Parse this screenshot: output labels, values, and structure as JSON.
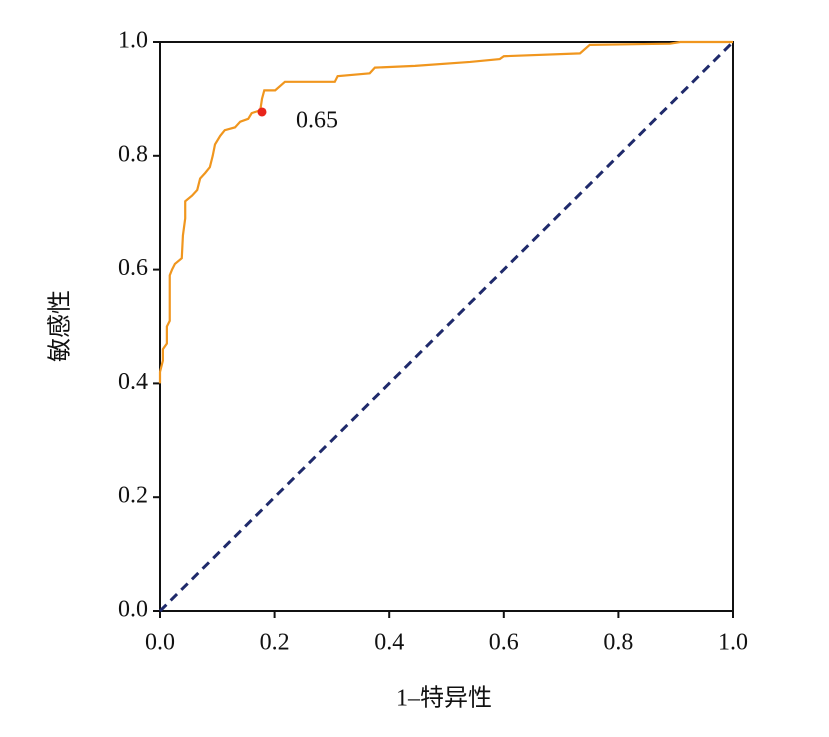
{
  "chart_data": {
    "type": "line",
    "xlabel": "1–特异性",
    "ylabel": "敏感性",
    "xlim": [
      0,
      1
    ],
    "ylim": [
      0,
      1
    ],
    "xticks": [
      {
        "value": 0,
        "label": "0.0"
      },
      0.2,
      0.4,
      0.6,
      0.8,
      {
        "value": 1,
        "label": "1.0"
      }
    ],
    "yticks": [
      {
        "value": 0,
        "label": "0.0"
      },
      0.2,
      0.4,
      0.6,
      0.8,
      {
        "value": 1,
        "label": "1.0"
      }
    ],
    "series": [
      {
        "color": "#f0961e",
        "dash": false,
        "x": [
          0,
          0,
          0.005,
          0.005,
          0.012,
          0.012,
          0.017,
          0.017,
          0.021,
          0.026,
          0.038,
          0.04,
          0.044,
          0.044,
          0.056,
          0.065,
          0.07,
          0.079,
          0.087,
          0.092,
          0.096,
          0.105,
          0.113,
          0.131,
          0.14,
          0.154,
          0.16,
          0.175,
          0.178,
          0.182,
          0.201,
          0.218,
          0.305,
          0.31,
          0.366,
          0.375,
          0.445,
          0.541,
          0.593,
          0.6,
          0.733,
          0.75,
          0.89,
          0.908,
          1
        ],
        "values": [
          0.4,
          0.42,
          0.44,
          0.46,
          0.47,
          0.5,
          0.51,
          0.59,
          0.6,
          0.61,
          0.62,
          0.66,
          0.69,
          0.72,
          0.73,
          0.74,
          0.76,
          0.77,
          0.78,
          0.8,
          0.82,
          0.835,
          0.845,
          0.85,
          0.86,
          0.865,
          0.875,
          0.88,
          0.9,
          0.915,
          0.915,
          0.93,
          0.93,
          0.94,
          0.945,
          0.955,
          0.958,
          0.965,
          0.97,
          0.975,
          0.98,
          0.995,
          0.997,
          1,
          1
        ]
      },
      {
        "color": "#1f2a6b",
        "dash": true,
        "x": [
          0,
          1
        ],
        "values": [
          0,
          1
        ]
      }
    ],
    "points": [
      {
        "x": 0.178,
        "y": 0.877,
        "color": "#e8251c",
        "label": "0.65"
      }
    ]
  }
}
